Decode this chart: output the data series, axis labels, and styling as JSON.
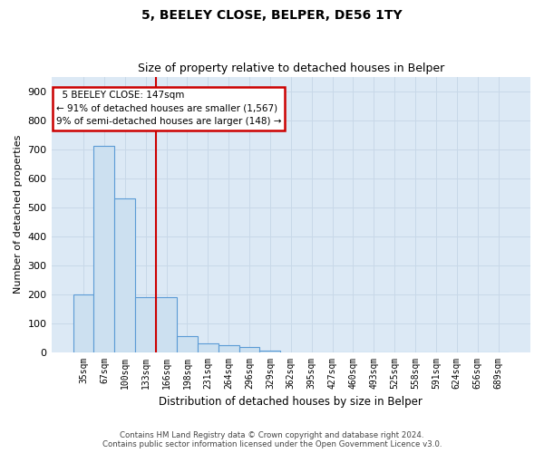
{
  "title": "5, BEELEY CLOSE, BELPER, DE56 1TY",
  "subtitle": "Size of property relative to detached houses in Belper",
  "xlabel": "Distribution of detached houses by size in Belper",
  "ylabel": "Number of detached properties",
  "footer_line1": "Contains HM Land Registry data © Crown copyright and database right 2024.",
  "footer_line2": "Contains public sector information licensed under the Open Government Licence v3.0.",
  "categories": [
    "35sqm",
    "67sqm",
    "100sqm",
    "133sqm",
    "166sqm",
    "198sqm",
    "231sqm",
    "264sqm",
    "296sqm",
    "329sqm",
    "362sqm",
    "395sqm",
    "427sqm",
    "460sqm",
    "493sqm",
    "525sqm",
    "558sqm",
    "591sqm",
    "624sqm",
    "656sqm",
    "689sqm"
  ],
  "values": [
    200,
    710,
    530,
    190,
    190,
    55,
    30,
    25,
    18,
    5,
    0,
    0,
    0,
    0,
    0,
    0,
    0,
    0,
    0,
    0,
    0
  ],
  "bar_color": "#cce0f0",
  "bar_edge_color": "#5b9bd5",
  "grid_color": "#c8d8e8",
  "background_color": "#dce9f5",
  "annotation_text": "  5 BEELEY CLOSE: 147sqm  \n← 91% of detached houses are smaller (1,567)\n9% of semi-detached houses are larger (148) →",
  "annotation_box_color": "#ffffff",
  "annotation_box_edge_color": "#cc0000",
  "vline_x": 3.5,
  "vline_color": "#cc0000",
  "ylim": [
    0,
    950
  ],
  "yticks": [
    0,
    100,
    200,
    300,
    400,
    500,
    600,
    700,
    800,
    900
  ]
}
